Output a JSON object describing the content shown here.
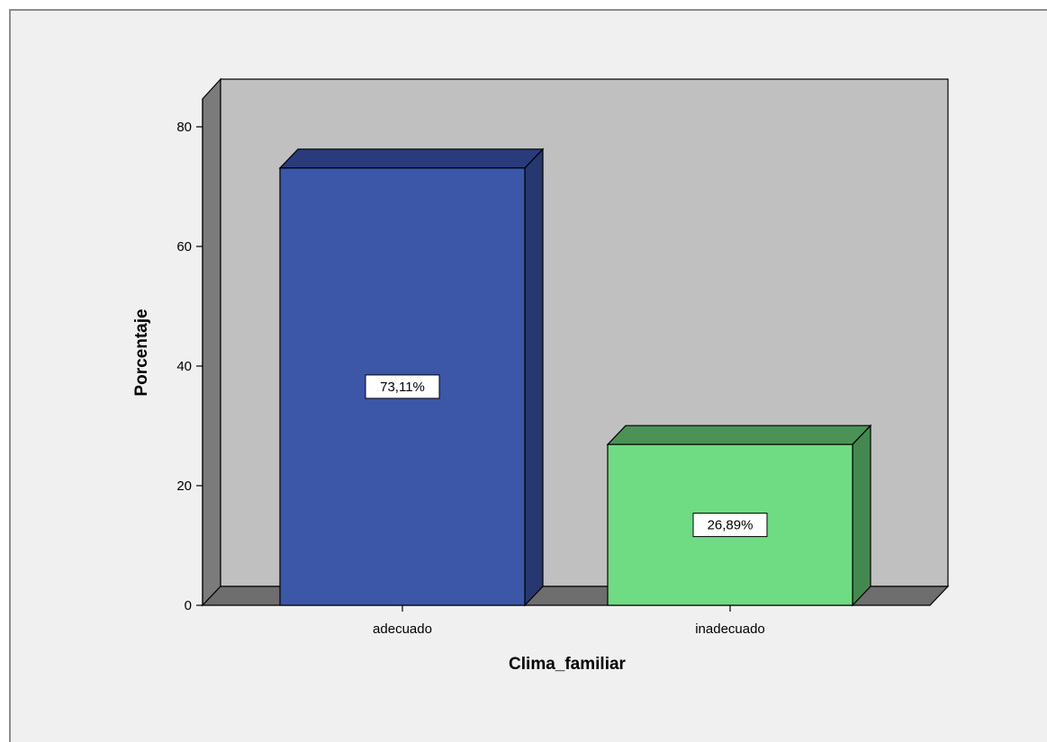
{
  "chart_data": {
    "type": "bar",
    "categories": [
      "adecuado",
      "inadecuado"
    ],
    "values": [
      73.11,
      26.89
    ],
    "data_labels": [
      "73,11%",
      "26,89%"
    ],
    "xlabel": "Clima_familiar",
    "ylabel": "Porcentaje",
    "ylim": [
      0,
      80
    ],
    "yticks": [
      0,
      20,
      40,
      60,
      80
    ],
    "grid": false,
    "three_d": true,
    "colors": {
      "bar_front": [
        "#3c56a8",
        "#6fdb82"
      ],
      "bar_side": [
        "#273770",
        "#44884f"
      ],
      "bar_top": [
        "#2a3b7c",
        "#4a9256"
      ],
      "wall": "#c0c0c0",
      "floor": "#6e6e6e",
      "side_wall": "#7b7b7b",
      "background": "#f0f0f0"
    }
  }
}
